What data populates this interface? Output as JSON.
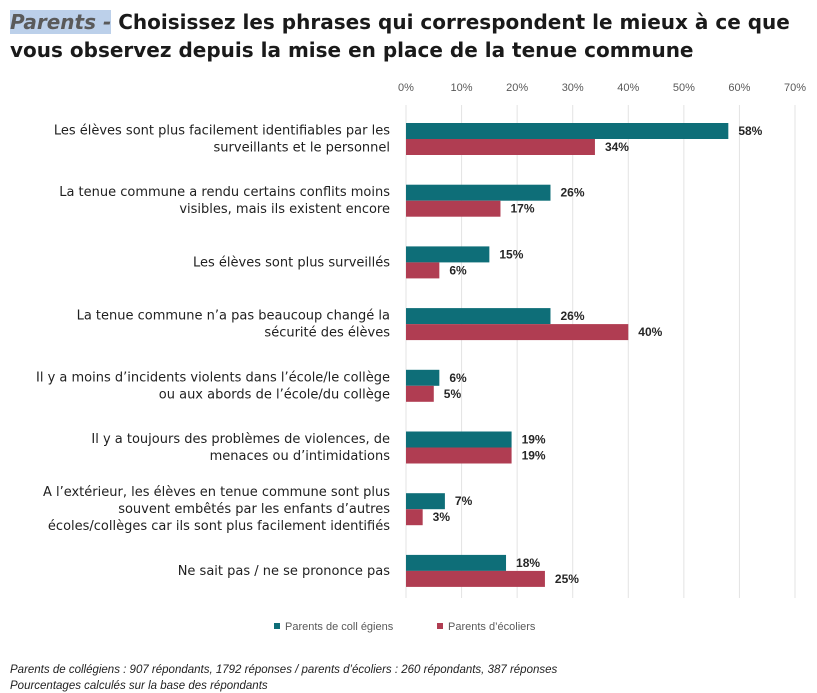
{
  "title": {
    "highlight": "Parents -",
    "text": "Choisissez les phrases qui correspondent le mieux à ce que vous observez depuis la mise en place de la tenue commune"
  },
  "chart_data": {
    "type": "bar",
    "orientation": "horizontal",
    "categories": [
      [
        "Les élèves sont plus facilement identifiables par les",
        "surveillants et le personnel"
      ],
      [
        "La tenue commune a rendu certains conflits moins",
        "visibles, mais ils existent encore"
      ],
      [
        "Les élèves sont plus surveillés"
      ],
      [
        "La tenue commune n’a pas beaucoup changé la",
        "sécurité des élèves"
      ],
      [
        "Il y a moins d’incidents violents dans l’école/le collège",
        "ou aux abords de l’école/du collège"
      ],
      [
        "Il y a toujours des problèmes de violences, de",
        "menaces ou d’intimidations"
      ],
      [
        "A l’extérieur, les élèves en tenue commune sont plus",
        "souvent embêtés par les enfants d’autres",
        "écoles/collèges car ils sont plus facilement identifiés"
      ],
      [
        "Ne sait pas / ne se prononce pas"
      ]
    ],
    "series": [
      {
        "name": "Parents de coll égiens",
        "color": "#0e6e78",
        "values": [
          58,
          26,
          15,
          26,
          6,
          19,
          7,
          18
        ],
        "labels": [
          "58%",
          "26%",
          "15%",
          "26%",
          "6%",
          "19%",
          "7%",
          "18%"
        ]
      },
      {
        "name": "Parents d’écoliers",
        "color": "#b03d52",
        "values": [
          34,
          17,
          6,
          40,
          5,
          19,
          3,
          25
        ],
        "labels": [
          "34%",
          "17%",
          "6%",
          "40%",
          "5%",
          "19%",
          "3%",
          "25%"
        ]
      }
    ],
    "xlim": [
      0,
      70
    ],
    "xticks": [
      "0%",
      "10%",
      "20%",
      "30%",
      "40%",
      "50%",
      "60%",
      "70%"
    ],
    "grid": true,
    "legend": "bottom"
  },
  "footnotes": [
    "Parents de collégiens : 907 répondants, 1792 réponses  / parents d’écoliers : 260 répondants, 387 réponses",
    "Pourcentages calculés sur la base des répondants"
  ]
}
